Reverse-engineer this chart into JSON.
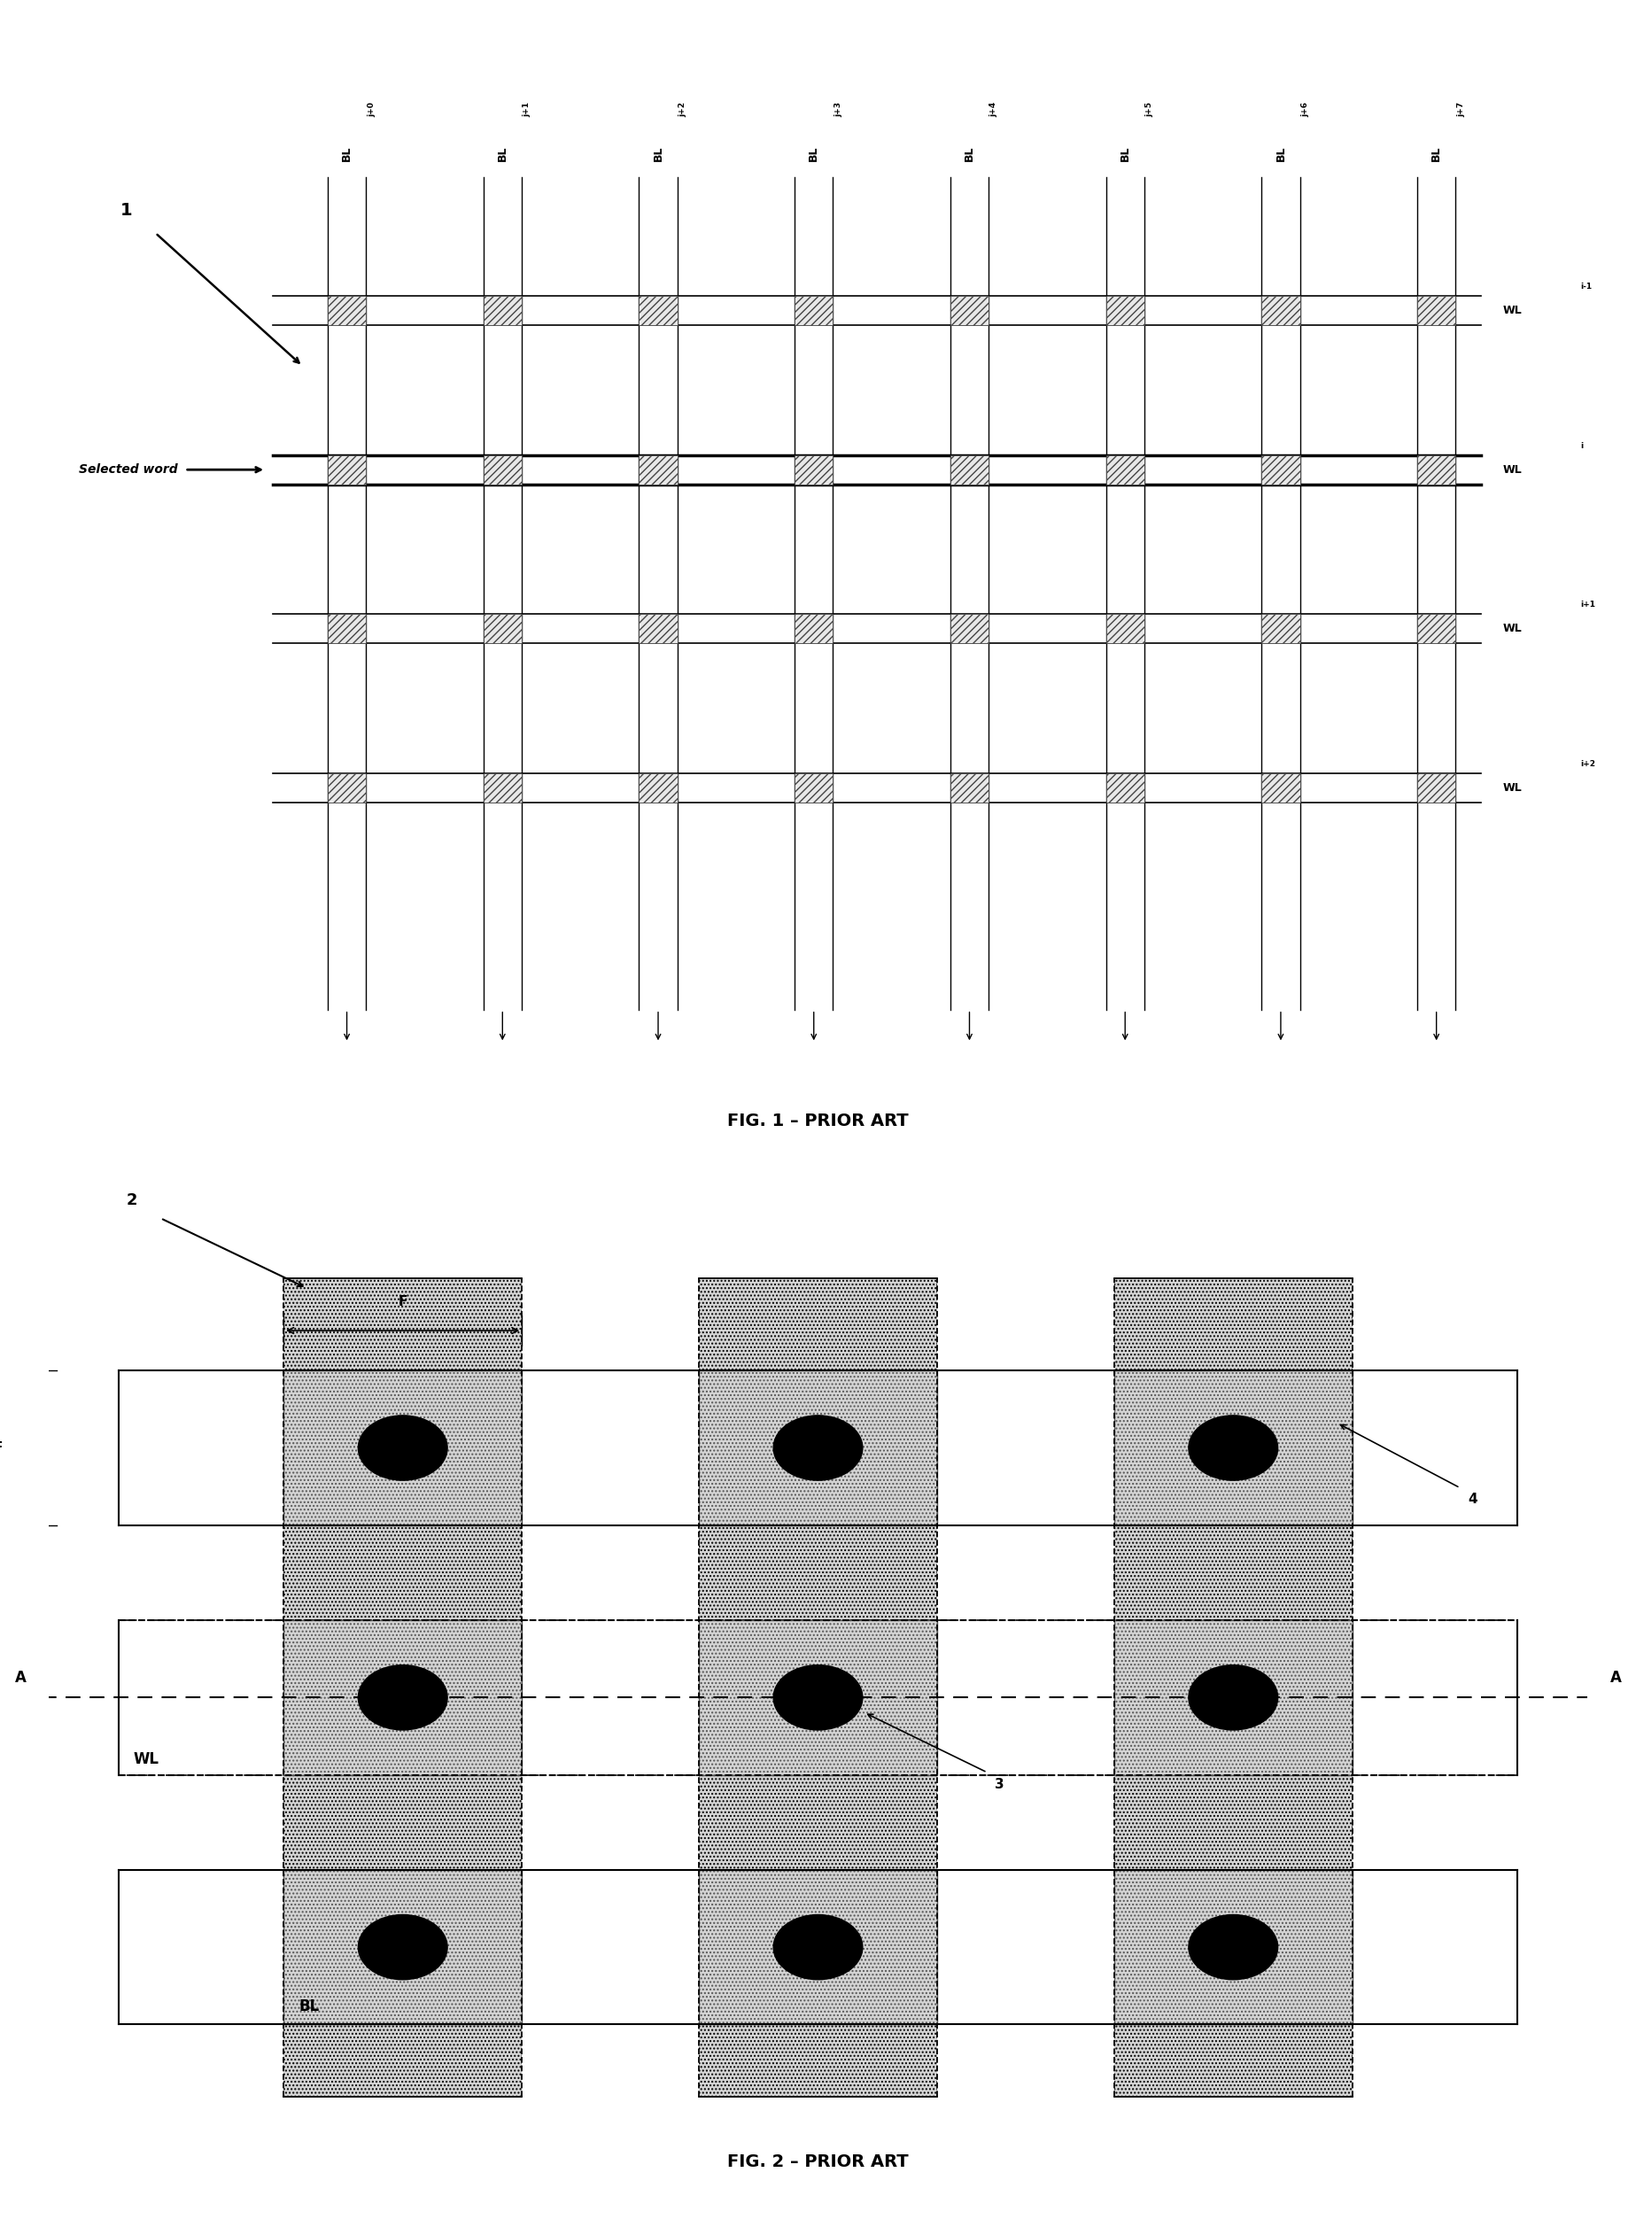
{
  "fig1": {
    "title": "FIG. 1 – PRIOR ART",
    "label1": "1",
    "selected_word_label": "Selected word",
    "bl_labels": [
      "j+0",
      "j+1",
      "j+2",
      "j+3",
      "j+4",
      "j+5",
      "j+6",
      "j+7"
    ],
    "wl_labels": [
      "WL",
      "WL",
      "WL",
      "WL"
    ],
    "wl_superscripts": [
      "i-1",
      "i",
      "i+1",
      "i+2"
    ],
    "n_bl": 8,
    "n_wl": 4,
    "selected_wl_idx": 1
  },
  "fig2": {
    "title": "FIG. 2 – PRIOR ART",
    "label2": "2",
    "label3": "3",
    "label4": "4",
    "wl_label": "WL",
    "bl_label": "BL",
    "f_label_h": "F",
    "f_label_v": "F",
    "a_label": "A",
    "n_cols": 3,
    "n_rows": 3,
    "selected_row": 1
  },
  "bg_color": "#ffffff",
  "line_color": "#000000",
  "cell_fill": "#d8d8d8"
}
